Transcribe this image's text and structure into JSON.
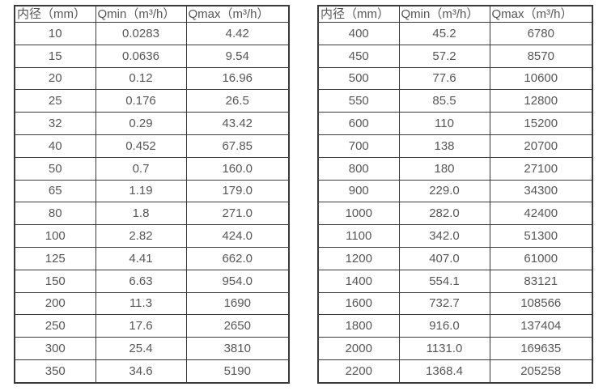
{
  "page": {
    "background_color": "#ffffff",
    "border_color": "#3a3a3a",
    "text_color": "#575757"
  },
  "tables": [
    {
      "name": "flow-rate-table-left",
      "headers": [
        "内径（mm）",
        "Qmin（m³/h）",
        "Qmax（m³/h）"
      ],
      "rows": [
        [
          "10",
          "0.0283",
          "4.42"
        ],
        [
          "15",
          "0.0636",
          "9.54"
        ],
        [
          "20",
          "0.12",
          "16.96"
        ],
        [
          "25",
          "0.176",
          "26.5"
        ],
        [
          "32",
          "0.29",
          "43.42"
        ],
        [
          "40",
          "0.452",
          "67.85"
        ],
        [
          "50",
          "0.7",
          "160.0"
        ],
        [
          "65",
          "1.19",
          "179.0"
        ],
        [
          "80",
          "1.8",
          "271.0"
        ],
        [
          "100",
          "2.82",
          "424.0"
        ],
        [
          "125",
          "4.41",
          "662.0"
        ],
        [
          "150",
          "6.63",
          "954.0"
        ],
        [
          "200",
          "11.3",
          "1690"
        ],
        [
          "250",
          "17.6",
          "2650"
        ],
        [
          "300",
          "25.4",
          "3810"
        ],
        [
          "350",
          "34.6",
          "5190"
        ]
      ]
    },
    {
      "name": "flow-rate-table-right",
      "headers": [
        "内径（mm）",
        "Qmin（m³/h）",
        "Qmax（m³/h）"
      ],
      "rows": [
        [
          "400",
          "45.2",
          "6780"
        ],
        [
          "450",
          "57.2",
          "8570"
        ],
        [
          "500",
          "77.6",
          "10600"
        ],
        [
          "550",
          "85.5",
          "12800"
        ],
        [
          "600",
          "110",
          "15200"
        ],
        [
          "700",
          "138",
          "20700"
        ],
        [
          "800",
          "180",
          "27100"
        ],
        [
          "900",
          "229.0",
          "34300"
        ],
        [
          "1000",
          "282.0",
          "42400"
        ],
        [
          "1100",
          "342.0",
          "51300"
        ],
        [
          "1200",
          "407.0",
          "61000"
        ],
        [
          "1400",
          "554.1",
          "83121"
        ],
        [
          "1600",
          "732.7",
          "108566"
        ],
        [
          "1800",
          "916.0",
          "137404"
        ],
        [
          "2000",
          "1131.0",
          "169635"
        ],
        [
          "2200",
          "1368.4",
          "205258"
        ]
      ]
    }
  ]
}
